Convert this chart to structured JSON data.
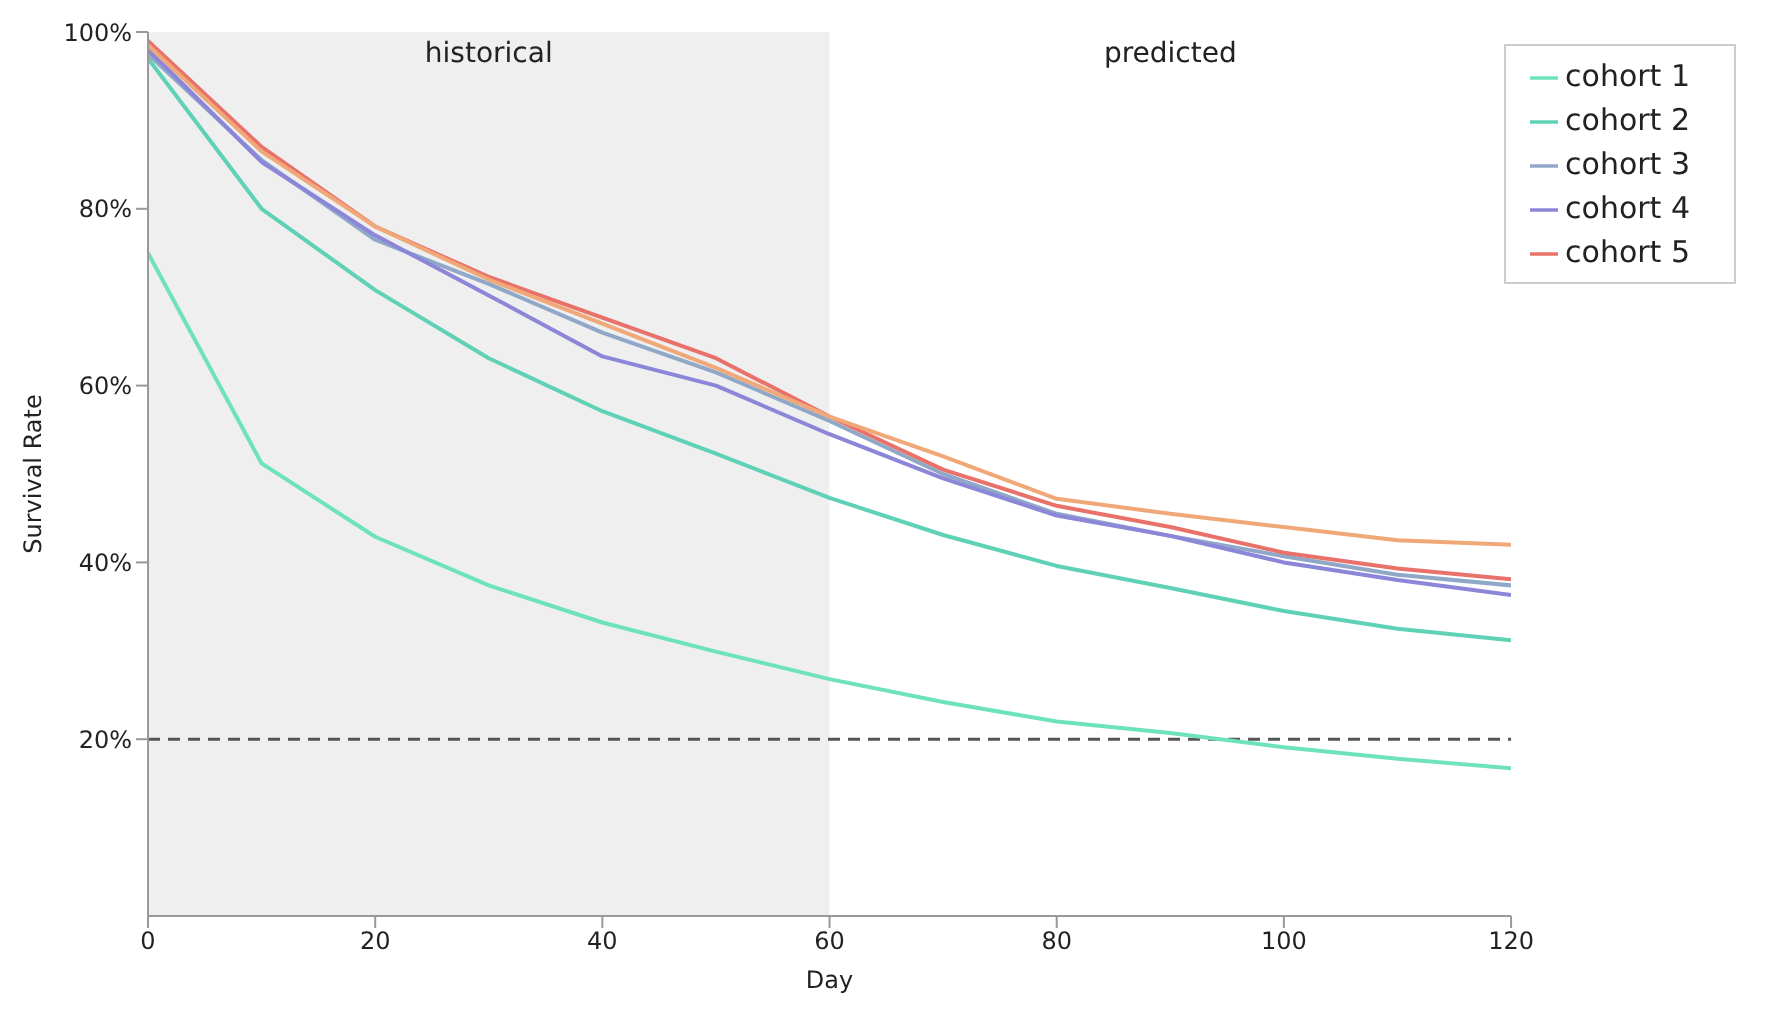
{
  "chart_data": {
    "type": "line",
    "xlabel": "Day",
    "ylabel": "Survival Rate",
    "x": [
      0,
      10,
      20,
      30,
      40,
      50,
      60,
      70,
      80,
      90,
      100,
      110,
      120
    ],
    "series": [
      {
        "name": "cohort 1",
        "color": "#6ee3bb",
        "values": [
          75,
          51.2,
          42.9,
          37.4,
          33.2,
          29.9,
          26.8,
          24.2,
          22,
          20.7,
          19.1,
          17.8,
          16.7
        ]
      },
      {
        "name": "cohort 2",
        "color": "#5fd1b6",
        "values": [
          97,
          80,
          70.8,
          63.1,
          57.1,
          52.3,
          47.3,
          43.1,
          39.6,
          37.1,
          34.5,
          32.5,
          31.2
        ]
      },
      {
        "name": "cohort 3",
        "color": "#8fa8c8",
        "values": [
          97.5,
          85.5,
          76.5,
          71.5,
          66,
          61.5,
          56,
          50,
          45.5,
          43,
          40.7,
          38.6,
          37.4
        ]
      },
      {
        "name": "cohort 4",
        "color": "#8c86d8",
        "values": [
          98,
          85.3,
          77,
          70.2,
          63.3,
          60,
          54.5,
          49.5,
          45.3,
          43,
          40,
          38,
          36.3
        ]
      },
      {
        "name": "cohort 5",
        "color": "#e8726a",
        "values": [
          99,
          87,
          78,
          72.3,
          67.7,
          63.1,
          56.5,
          50.5,
          46.4,
          44,
          41.1,
          39.3,
          38.1
        ]
      },
      {
        "color": "#f0a878",
        "values": [
          98.5,
          86.5,
          78,
          72,
          67,
          62,
          56.5,
          52,
          47.2,
          45.5,
          44,
          42.5,
          42
        ]
      }
    ],
    "xlim": [
      0,
      120
    ],
    "xticks": [
      0,
      20,
      40,
      60,
      80,
      100,
      120
    ],
    "ylim": [
      0,
      100
    ],
    "yticks": [
      {
        "value": 20,
        "label": "20%"
      },
      {
        "value": 40,
        "label": "40%"
      },
      {
        "value": 60,
        "label": "60%"
      },
      {
        "value": 80,
        "label": "80%"
      },
      {
        "value": 100,
        "label": "100%"
      }
    ],
    "bands": [
      {
        "axis": "x",
        "from": 0,
        "to": 60,
        "label": "historical",
        "color": "#efefef"
      }
    ],
    "annotations": [
      "predicted"
    ],
    "ref_lines": [
      {
        "axis": "y",
        "value": 20,
        "color": "#555555",
        "line_style": "dashed"
      }
    ],
    "legend": "top right",
    "line_style": "solid",
    "marker": "none"
  }
}
